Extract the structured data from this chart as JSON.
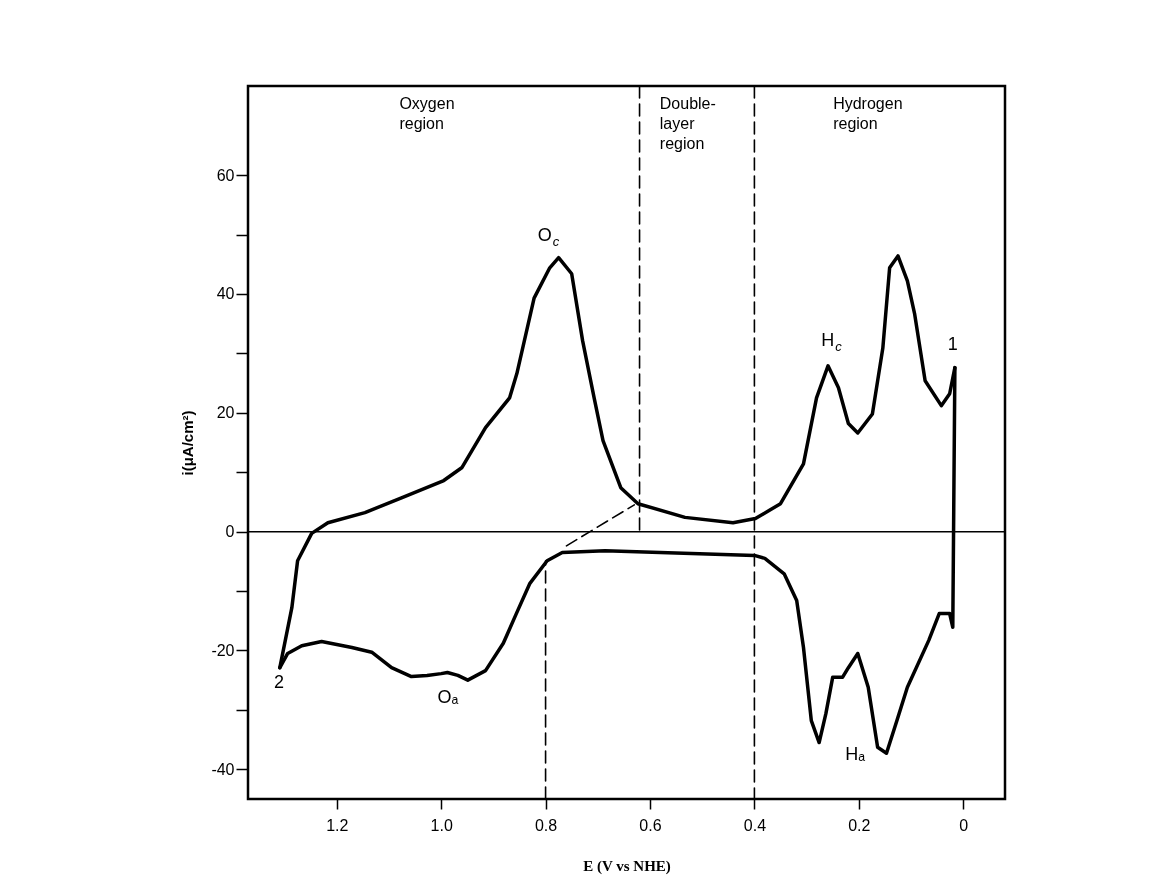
{
  "chart_data": {
    "type": "line",
    "xlabel": "E (V vs NHE)",
    "ylabel": "i(μA/cm²)",
    "xlim": [
      1.37,
      -0.08
    ],
    "ylim": [
      -45,
      75
    ],
    "xticks": [
      1.2,
      {
        "value": 1,
        "label": "1.0"
      },
      0.8,
      0.6,
      0.4,
      0.2,
      0
    ],
    "yticks": [
      {
        "value": -40,
        "label": "-40"
      },
      {
        "value": -30,
        "label": null
      },
      {
        "value": -20,
        "label": "-20"
      },
      {
        "value": -10,
        "label": null
      },
      0,
      {
        "value": 10,
        "label": null
      },
      20,
      {
        "value": 30,
        "label": null
      },
      40,
      {
        "value": 50,
        "label": null
      },
      60
    ],
    "grid": false,
    "series": [
      {
        "color": "#000000",
        "line_style": "solid",
        "x": [
          1.309,
          1.286,
          1.275,
          1.248,
          1.217,
          1.146,
          1.076,
          0.995,
          0.96,
          0.915,
          0.869,
          0.855,
          0.822,
          0.792,
          0.775,
          0.75,
          0.729,
          0.707,
          0.69,
          0.656,
          0.623,
          0.533,
          0.441,
          0.398,
          0.35,
          0.306,
          0.281,
          0.259,
          0.239,
          0.22,
          0.202,
          0.174,
          0.154,
          0.141,
          0.125,
          0.107,
          0.093,
          0.073,
          0.042,
          0.026,
          0.016
        ],
        "values": [
          -22.9,
          -12.8,
          -4.9,
          -0.3,
          1.5,
          3.2,
          5.7,
          8.6,
          10.8,
          17.5,
          22.5,
          26.6,
          39.3,
          44.4,
          46.1,
          43.4,
          32.1,
          22.5,
          15.3,
          7.4,
          4.7,
          2.4,
          1.5,
          2.2,
          4.7,
          11.4,
          22.5,
          27.9,
          24.2,
          18.2,
          16.6,
          19.8,
          30.9,
          44.4,
          46.4,
          42.2,
          36.6,
          25.4,
          21.2,
          23.2,
          27.6
        ]
      },
      {
        "color": "#000000",
        "line_style": "solid",
        "x": [
          0.016,
          0.02,
          0.026,
          0.046,
          0.066,
          0.107,
          0.127,
          0.147,
          0.164,
          0.182,
          0.202,
          0.22,
          0.231,
          0.25,
          0.263,
          0.276,
          0.291,
          0.306,
          0.319,
          0.343,
          0.38,
          0.4,
          0.686,
          0.768,
          0.797,
          0.83,
          0.856,
          0.881,
          0.915,
          0.949,
          0.968,
          0.988,
          1.0,
          1.027,
          1.057,
          1.095,
          1.133,
          1.171,
          1.229,
          1.267,
          1.294,
          1.309
        ],
        "values": [
          27.6,
          -16.1,
          -13.8,
          -13.8,
          -18.3,
          -26.2,
          -31.8,
          -37.3,
          -36.3,
          -26.2,
          -20.5,
          -22.9,
          -24.5,
          -24.5,
          -30.6,
          -35.5,
          -31.8,
          -19.5,
          -11.6,
          -7.1,
          -4.5,
          -4.0,
          -3.2,
          -3.5,
          -4.9,
          -8.7,
          -13.8,
          -18.8,
          -23.4,
          -25.0,
          -24.2,
          -23.7,
          -23.9,
          -24.2,
          -24.4,
          -22.9,
          -20.3,
          -19.5,
          -18.5,
          -19.2,
          -20.5,
          -22.9
        ]
      },
      {
        "color": "#000000",
        "line_style": "dashed",
        "x": [
          0.62,
          0.62
        ],
        "values": [
          75,
          0
        ]
      },
      {
        "color": "#000000",
        "line_style": "dashed",
        "x": [
          0.4,
          0.4
        ],
        "values": [
          75,
          -45
        ]
      },
      {
        "color": "#000000",
        "line_style": "dashed",
        "x": [
          0.8,
          0.8
        ],
        "values": [
          -45,
          -4.9
        ]
      },
      {
        "color": "#000000",
        "line_style": "dashed",
        "x": [
          0.76,
          0.7,
          0.63
        ],
        "values": [
          -2.4,
          0.8,
          4.5
        ]
      }
    ],
    "ref_lines": [
      {
        "axis": "y",
        "value": 0,
        "color": "#000000",
        "line_style": "solid"
      }
    ],
    "annotations": [
      "Oxygen\nregion",
      "Double-\nlayer\nregion",
      "Hydrogen\nregion",
      "O$_{c}$",
      "Oₐ",
      "H$_{c}$",
      "Hₐ",
      "1",
      "2"
    ]
  }
}
